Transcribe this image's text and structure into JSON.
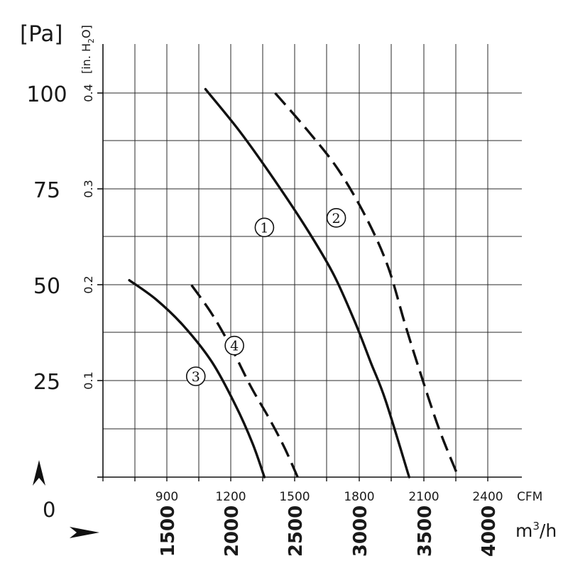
{
  "chart_data": {
    "type": "line",
    "y_unit_primary": "[Pa]",
    "y_unit_secondary_base": "[in. H",
    "y_unit_secondary_sub": "2",
    "y_unit_secondary_tail": "O]",
    "x_unit_primary": "CFM",
    "x_unit_secondary_base": "m",
    "x_unit_secondary_sup": "3",
    "x_unit_secondary_tail": "/h",
    "origin_label": "0",
    "y_ticks_pa": [
      "100",
      "75",
      "50",
      "25"
    ],
    "y_ticks_inh2o": [
      "0.4",
      "0.3",
      "0.2",
      "0.1"
    ],
    "x_ticks_cfm": [
      "900",
      "1200",
      "1500",
      "1800",
      "2100",
      "2400"
    ],
    "x_ticks_m3h": [
      "1500",
      "2000",
      "2500",
      "3000",
      "3500",
      "4000"
    ],
    "grid": true,
    "series": [
      {
        "name": "1",
        "style": "solid",
        "points": [
          [
            1080,
            0.404
          ],
          [
            1240,
            0.36
          ],
          [
            1400,
            0.31
          ],
          [
            1560,
            0.256
          ],
          [
            1680,
            0.21
          ],
          [
            1780,
            0.16
          ],
          [
            1850,
            0.12
          ],
          [
            1920,
            0.08
          ],
          [
            2030,
            0.0
          ]
        ]
      },
      {
        "name": "2",
        "style": "dashed",
        "points": [
          [
            1405,
            0.4
          ],
          [
            1560,
            0.36
          ],
          [
            1700,
            0.32
          ],
          [
            1830,
            0.27
          ],
          [
            1930,
            0.22
          ],
          [
            2010,
            0.16
          ],
          [
            2080,
            0.11
          ],
          [
            2170,
            0.05
          ],
          [
            2260,
            0.0
          ]
        ]
      },
      {
        "name": "3",
        "style": "solid",
        "points": [
          [
            725,
            0.205
          ],
          [
            850,
            0.185
          ],
          [
            980,
            0.157
          ],
          [
            1110,
            0.12
          ],
          [
            1220,
            0.075
          ],
          [
            1300,
            0.035
          ],
          [
            1355,
            0.0
          ]
        ]
      },
      {
        "name": "4",
        "style": "dashed",
        "points": [
          [
            1015,
            0.2
          ],
          [
            1110,
            0.17
          ],
          [
            1200,
            0.135
          ],
          [
            1290,
            0.095
          ],
          [
            1380,
            0.06
          ],
          [
            1450,
            0.03
          ],
          [
            1510,
            0.0
          ]
        ]
      }
    ],
    "labels": [
      {
        "text": "1",
        "x": 1355,
        "y": 0.26
      },
      {
        "text": "2",
        "x": 1690,
        "y": 0.27
      },
      {
        "text": "3",
        "x": 1035,
        "y": 0.105
      },
      {
        "text": "4",
        "x": 1215,
        "y": 0.137
      }
    ]
  }
}
